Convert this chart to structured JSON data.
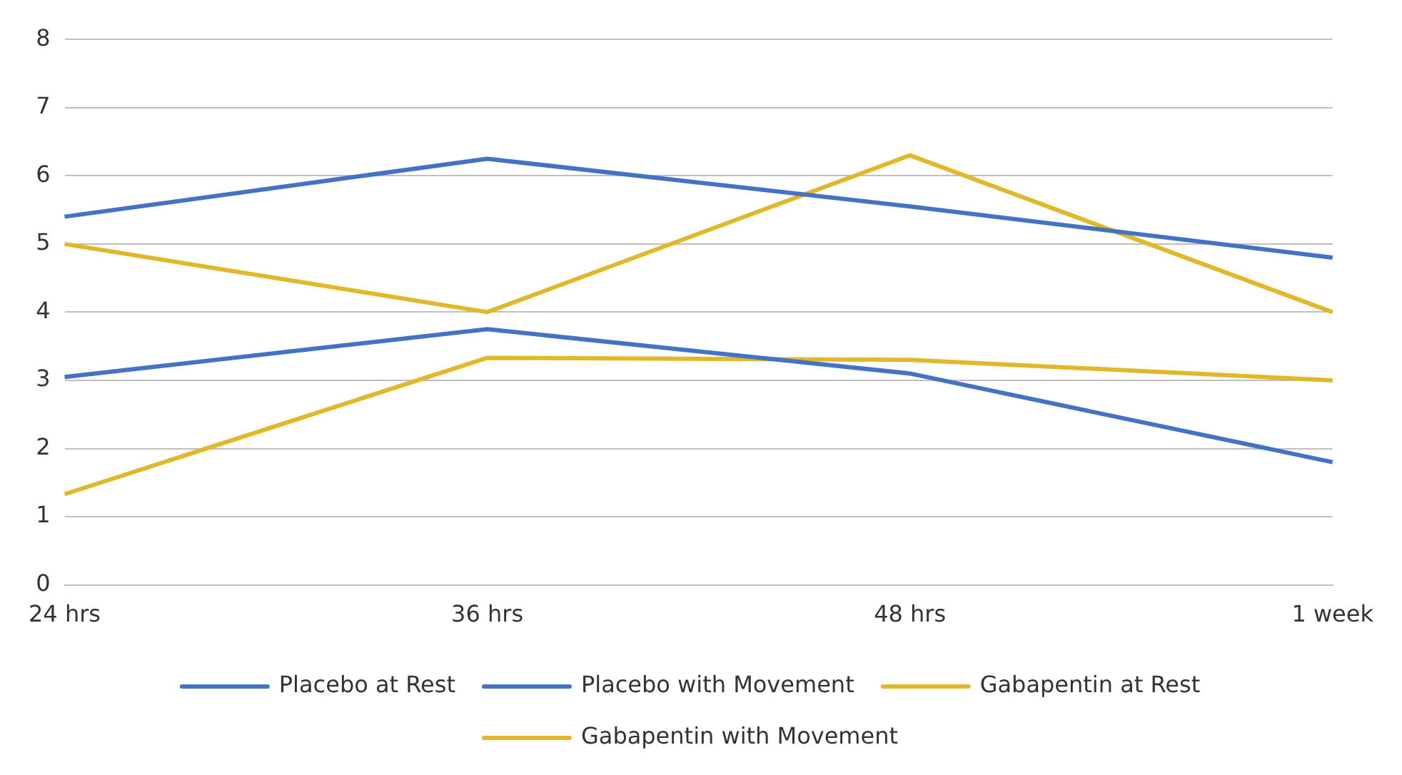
{
  "chart_data": {
    "type": "line",
    "categories": [
      "24 hrs",
      "36 hrs",
      "48 hrs",
      "1 week"
    ],
    "series": [
      {
        "name": "Placebo at Rest",
        "color": "#4472c4",
        "values": [
          3.05,
          3.75,
          3.1,
          1.8
        ]
      },
      {
        "name": "Placebo with Movement",
        "color": "#4472c4",
        "values": [
          5.4,
          6.25,
          5.55,
          4.8
        ]
      },
      {
        "name": "Gabapentin at Rest",
        "color": "#e1b829",
        "values": [
          1.33,
          3.33,
          3.3,
          3.0
        ]
      },
      {
        "name": "Gabapentin with Movement",
        "color": "#e1b829",
        "values": [
          5.0,
          4.0,
          6.3,
          4.0
        ]
      }
    ],
    "ylim": [
      0,
      8
    ],
    "yticks": [
      0,
      1,
      2,
      3,
      4,
      5,
      6,
      7,
      8
    ],
    "grid": "y",
    "legend": "bottom",
    "marker": "none",
    "line_style": "solid"
  }
}
